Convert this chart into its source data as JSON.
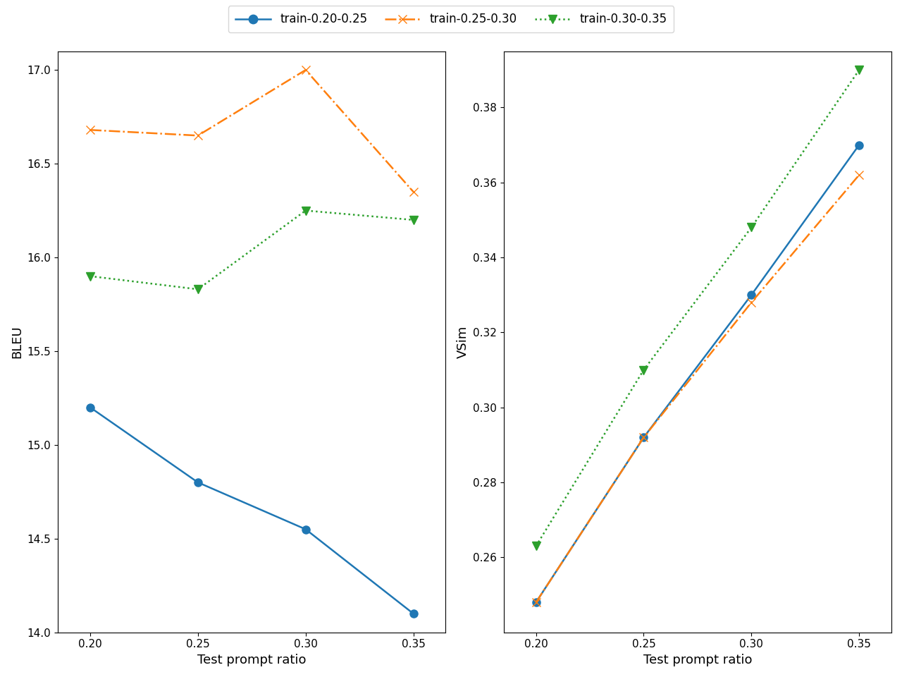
{
  "x": [
    0.2,
    0.25,
    0.3,
    0.35
  ],
  "bleu": {
    "train_020_025": [
      15.2,
      14.8,
      14.55,
      14.1
    ],
    "train_025_030": [
      16.68,
      16.65,
      17.0,
      16.35
    ],
    "train_030_035": [
      15.9,
      15.83,
      16.25,
      16.2
    ]
  },
  "vsim": {
    "train_020_025": [
      0.248,
      0.292,
      0.33,
      0.37
    ],
    "train_025_030": [
      0.248,
      0.292,
      0.328,
      0.362
    ],
    "train_030_035": [
      0.263,
      0.31,
      0.348,
      0.39
    ]
  },
  "labels": [
    "train-0.20-0.25",
    "train-0.25-0.30",
    "train-0.30-0.35"
  ],
  "colors": [
    "#1f77b4",
    "#ff7f0e",
    "#2ca02c"
  ],
  "linestyles": [
    "-",
    "-.",
    ":"
  ],
  "markers": [
    "o",
    "x",
    "v"
  ],
  "xlabel": "Test prompt ratio",
  "ylabel_left": "BLEU",
  "ylabel_right": "VSim",
  "bleu_ylim": [
    14.0,
    17.1
  ],
  "bleu_yticks": [
    14.0,
    14.5,
    15.0,
    15.5,
    16.0,
    16.5,
    17.0
  ],
  "vsim_ylim": [
    0.24,
    0.395
  ],
  "vsim_yticks": [
    0.26,
    0.28,
    0.3,
    0.32,
    0.34,
    0.36,
    0.38
  ],
  "xticks": [
    0.2,
    0.25,
    0.3,
    0.35
  ],
  "xtick_labels": [
    "0.20",
    "0.25",
    "0.30",
    "0.35"
  ]
}
